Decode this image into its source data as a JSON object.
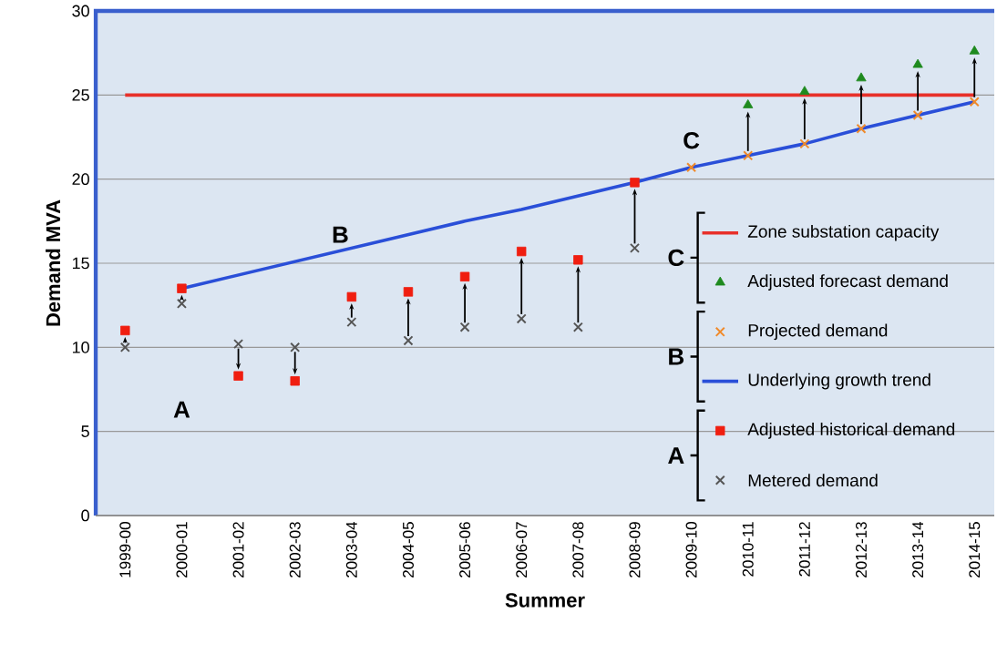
{
  "chart_data": {
    "type": "scatter",
    "xlabel": "Summer",
    "ylabel": "Demand MVA",
    "categories": [
      "1999-00",
      "2000-01",
      "2001-02",
      "2002-03",
      "2003-04",
      "2004-05",
      "2005-06",
      "2006-07",
      "2007-08",
      "2008-09",
      "2009-10",
      "2010-11",
      "2011-12",
      "2012-13",
      "2013-14",
      "2014-15"
    ],
    "series": [
      {
        "name": "Zone substation capacity",
        "type": "line",
        "color": "#e8302a",
        "values": [
          25,
          25,
          25,
          25,
          25,
          25,
          25,
          25,
          25,
          25,
          25,
          25,
          25,
          25,
          25,
          25
        ],
        "marker": "none"
      },
      {
        "name": "Adjusted forecast demand",
        "color": "#1e8a1e",
        "marker": "triangle",
        "values": [
          null,
          null,
          null,
          null,
          null,
          null,
          null,
          null,
          null,
          null,
          null,
          24.4,
          25.2,
          26.0,
          26.8,
          27.6
        ]
      },
      {
        "name": "Projected demand",
        "color": "#f08a2a",
        "marker": "cross",
        "values": [
          null,
          null,
          null,
          null,
          null,
          null,
          null,
          null,
          null,
          null,
          20.7,
          21.4,
          22.1,
          23.0,
          23.8,
          24.6
        ]
      },
      {
        "name": "Underlying growth trend",
        "type": "line",
        "color": "#2a4fd8",
        "values": [
          null,
          13.5,
          14.3,
          15.1,
          15.9,
          16.7,
          17.5,
          18.2,
          19.0,
          19.8,
          20.7,
          21.4,
          22.1,
          23.0,
          23.8,
          24.6
        ],
        "marker": "none"
      },
      {
        "name": "Adjusted historical demand",
        "color": "#f01e10",
        "marker": "square",
        "values": [
          11.0,
          13.5,
          8.3,
          8.0,
          13.0,
          13.3,
          14.2,
          15.7,
          15.2,
          19.8,
          null,
          null,
          null,
          null,
          null,
          null
        ]
      },
      {
        "name": "Metered demand",
        "color": "#555555",
        "marker": "cross",
        "values": [
          10.0,
          12.6,
          10.2,
          10.0,
          11.5,
          10.4,
          11.2,
          11.7,
          11.2,
          15.9,
          null,
          null,
          null,
          null,
          null,
          null
        ]
      }
    ],
    "ylim": [
      0,
      30
    ],
    "yticks": [
      0,
      5,
      10,
      15,
      20,
      25,
      30
    ],
    "grid": "y",
    "legend": "right",
    "annotations": [
      "A",
      "B",
      "C"
    ]
  }
}
